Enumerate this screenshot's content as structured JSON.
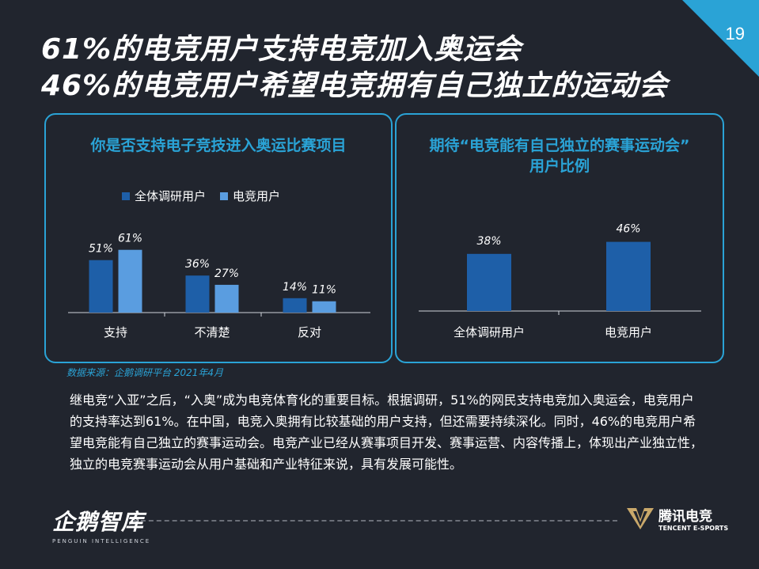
{
  "page": {
    "number": "19"
  },
  "title": {
    "line1": "61%的电竞用户支持电竞加入奥运会",
    "line2": "46%的电竞用户希望电竞拥有自己独立的运动会"
  },
  "colors": {
    "accent": "#2aa3d6",
    "series_dark": "#1e5fa8",
    "series_light": "#5a9de0",
    "background": "#21252e"
  },
  "chart_data": [
    {
      "type": "bar",
      "title": "你是否支持电子竞技进入奥运比赛项目",
      "categories": [
        "支持",
        "不清楚",
        "反对"
      ],
      "series": [
        {
          "name": "全体调研用户",
          "values": [
            51,
            36,
            14
          ],
          "labels": [
            "51%",
            "36%",
            "14%"
          ]
        },
        {
          "name": "电竞用户",
          "values": [
            61,
            27,
            11
          ],
          "labels": [
            "61%",
            "27%",
            "11%"
          ]
        }
      ],
      "ylim": [
        0,
        100
      ],
      "legend": "top-left"
    },
    {
      "type": "bar",
      "title_line1": "期待“电竞能有自己独立的赛事运动会”",
      "title_line2": "用户比例",
      "categories": [
        "全体调研用户",
        "电竞用户"
      ],
      "values": [
        38,
        46
      ],
      "labels": [
        "38%",
        "46%"
      ],
      "ylim": [
        0,
        100
      ]
    }
  ],
  "source": "数据来源：企鹅调研平台 2021年4月",
  "body": "继电竞“入亚”之后，“入奥”成为电竞体育化的重要目标。根据调研，51%的网民支持电竞加入奥运会，电竞用户的支持率达到61%。在中国，电竞入奥拥有比较基础的用户支持，但还需要持续深化。同时，46%的电竞用户希望电竞能有自己独立的赛事运动会。电竞产业已经从赛事项目开发、赛事运营、内容传播上，体现出产业独立性，独立的电竞赛事运动会从用户基础和产业特征来说，具有发展可能性。",
  "footer": {
    "left_logo_cn": "企鹅智库",
    "left_logo_en": "PENGUIN INTELLIGENCE",
    "right_logo_cn": "腾讯电竞",
    "right_logo_en": "TENCENT E-SPORTS"
  }
}
